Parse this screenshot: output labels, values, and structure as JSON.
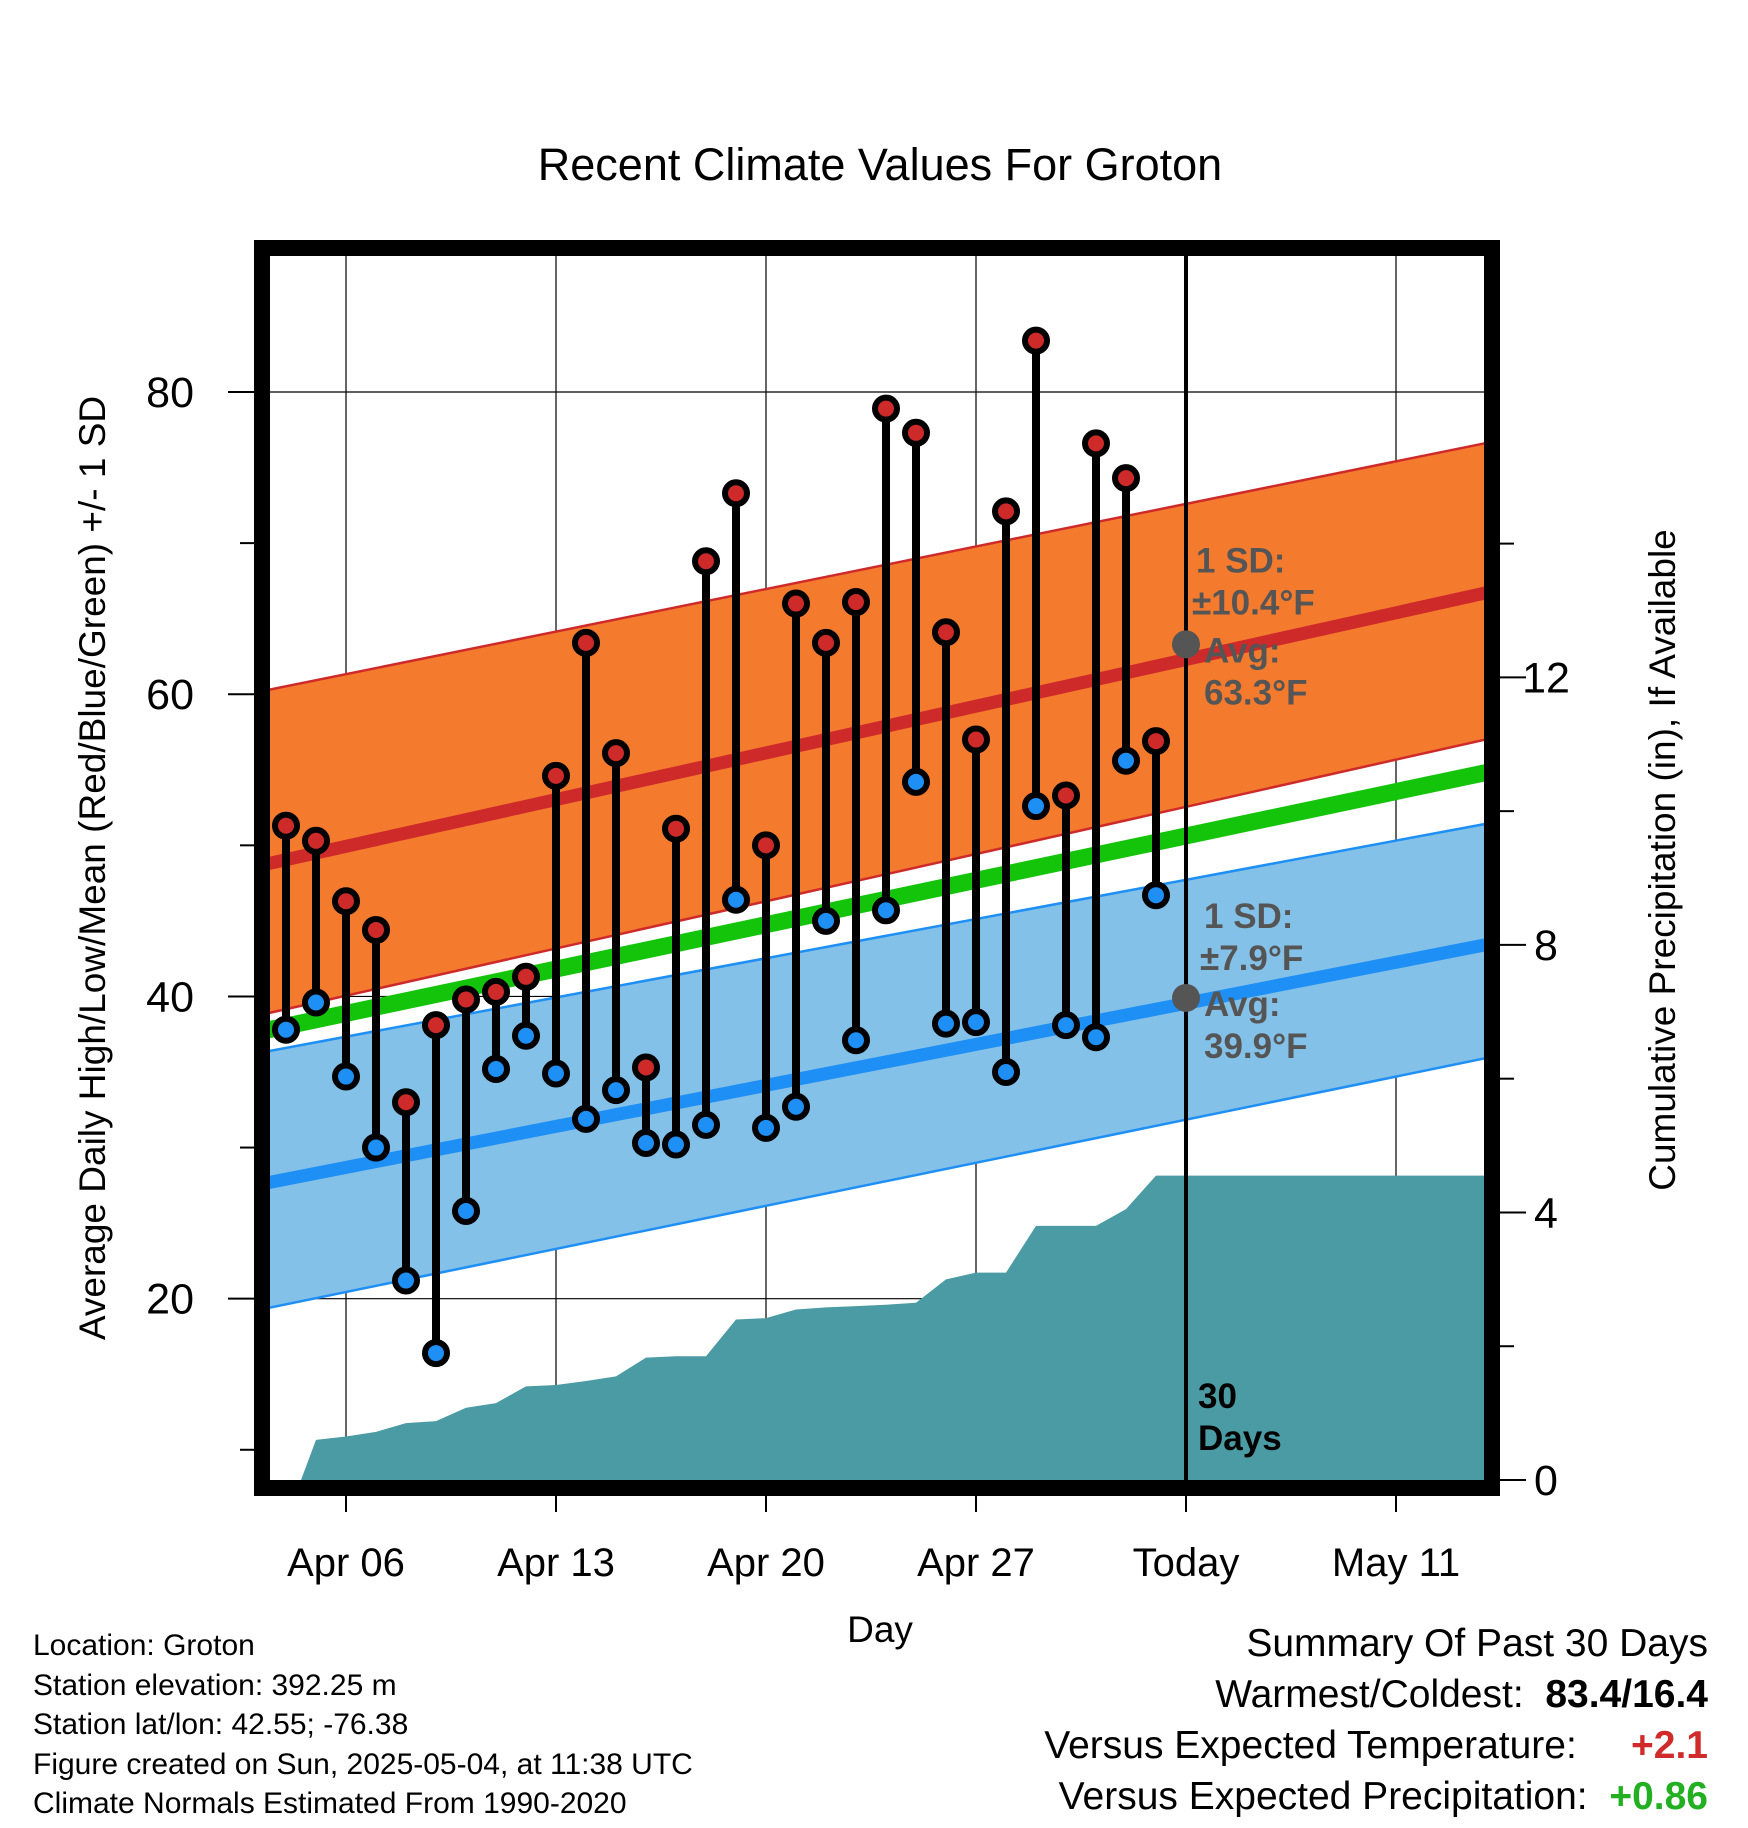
{
  "chart_data": {
    "type": "line",
    "title": "Recent Climate Values For Groton",
    "xlabel": "Day",
    "ylabel": "Average Daily High/Low/Mean (Red/Blue/Green) +/- 1 SD",
    "y2label": "Cumulative Precipitation (in), If Available",
    "ylim": [
      8,
      89
    ],
    "y2lim": [
      0,
      18.3
    ],
    "yticks": [
      20,
      40,
      60,
      80
    ],
    "y2ticks": [
      0,
      4,
      8,
      12
    ],
    "xlim": [
      -0.8,
      40.2
    ],
    "xticks": [
      {
        "x": 2,
        "label": "Apr 06"
      },
      {
        "x": 9,
        "label": "Apr 13"
      },
      {
        "x": 16,
        "label": "Apr 20"
      },
      {
        "x": 23,
        "label": "Apr 27"
      },
      {
        "x": 30,
        "label": "Today"
      },
      {
        "x": 37,
        "label": "May 11"
      }
    ],
    "today_x": 30,
    "today_label": "30 Days",
    "grid": true,
    "normals": {
      "x": [
        -0.8,
        40.2
      ],
      "high_mean": [
        48.7,
        66.8
      ],
      "high_upper": [
        60.2,
        76.7
      ],
      "high_lower": [
        38.8,
        57.1
      ],
      "low_mean": [
        27.6,
        43.5
      ],
      "low_upper": [
        36.3,
        51.5
      ],
      "low_lower": [
        19.3,
        36.0
      ],
      "mean": [
        37.7,
        54.9
      ],
      "colors": {
        "high_band": "#f47b2e",
        "high_line": "#cf2a2a",
        "low_band": "#84c1e8",
        "low_line": "#1e8ff5",
        "mean_line": "#14c40a",
        "precip": "#4a9ba3"
      }
    },
    "series": [
      {
        "name": "High",
        "color": "#cf2a2a",
        "x": [
          0,
          1,
          2,
          3,
          4,
          5,
          6,
          7,
          8,
          9,
          10,
          11,
          12,
          13,
          14,
          15,
          16,
          17,
          18,
          19,
          20,
          21,
          22,
          23,
          24,
          25,
          26,
          27,
          28,
          29
        ],
        "values": [
          51.3,
          50.3,
          46.3,
          44.4,
          33.0,
          38.1,
          39.8,
          40.3,
          41.3,
          54.6,
          63.4,
          56.1,
          35.3,
          51.1,
          68.8,
          73.3,
          50.0,
          66.0,
          63.4,
          66.1,
          78.9,
          77.3,
          64.1,
          57.0,
          72.1,
          83.4,
          53.3,
          76.6,
          74.3,
          56.9
        ]
      },
      {
        "name": "Low",
        "color": "#1e8ff5",
        "x": [
          0,
          1,
          2,
          3,
          4,
          5,
          6,
          7,
          8,
          9,
          10,
          11,
          12,
          13,
          14,
          15,
          16,
          17,
          18,
          19,
          20,
          21,
          22,
          23,
          24,
          25,
          26,
          27,
          28,
          29
        ],
        "values": [
          37.8,
          39.6,
          34.7,
          30.0,
          21.2,
          16.4,
          25.8,
          35.2,
          37.4,
          34.9,
          31.9,
          33.8,
          30.3,
          30.2,
          31.5,
          46.4,
          31.3,
          32.7,
          45.0,
          37.1,
          45.7,
          54.2,
          38.2,
          38.3,
          35.0,
          52.6,
          38.1,
          37.3,
          55.6,
          46.7
        ]
      }
    ],
    "precipitation": {
      "x": [
        0,
        0.5,
        1,
        2,
        3,
        4,
        5,
        6,
        7,
        8,
        9,
        10,
        11,
        12,
        13,
        14,
        15,
        16,
        17,
        18,
        19,
        20,
        21,
        22,
        23,
        24,
        25,
        26,
        27,
        28,
        29,
        30,
        40.2
      ],
      "values": [
        0,
        0,
        0.6,
        0.65,
        0.72,
        0.85,
        0.88,
        1.08,
        1.15,
        1.4,
        1.42,
        1.48,
        1.55,
        1.83,
        1.85,
        1.85,
        2.4,
        2.42,
        2.55,
        2.58,
        2.6,
        2.62,
        2.65,
        3.0,
        3.1,
        3.1,
        3.8,
        3.8,
        3.8,
        4.05,
        4.55,
        4.55,
        4.55
      ]
    },
    "annotations": {
      "high_sd": "1 SD:",
      "high_sd_val": "±10.4°F",
      "high_avg": "Avg:",
      "high_avg_val": "63.3°F",
      "high_avg_y": 63.3,
      "low_sd": "1 SD:",
      "low_sd_val": "±7.9°F",
      "low_avg": "Avg:",
      "low_avg_val": "39.9°F",
      "low_avg_y": 39.9
    }
  },
  "info": {
    "location": "Location: Groton",
    "elevation": "Station elevation: 392.25 m",
    "latlon": "Station lat/lon: 42.55; -76.38",
    "created": "Figure created on Sun, 2025-05-04, at 11:38 UTC",
    "normals": "Climate Normals Estimated From 1990-2020"
  },
  "summary": {
    "title": "Summary Of Past 30 Days",
    "warm_label": "Warmest/Coldest:",
    "warm_value": "83.4/16.4",
    "temp_label": "Versus Expected Temperature:",
    "temp_value": "+2.1",
    "precip_label": "Versus Expected Precipitation:",
    "precip_value": "+0.86"
  }
}
